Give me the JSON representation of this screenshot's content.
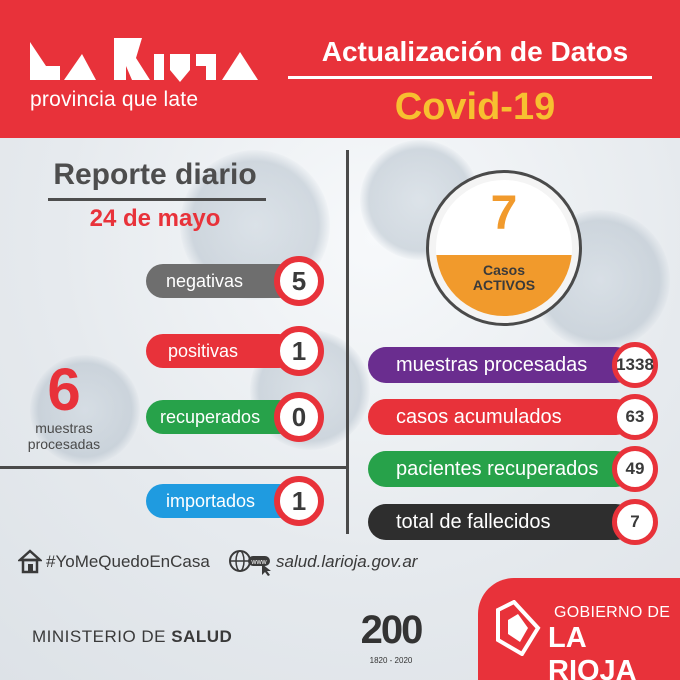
{
  "header": {
    "logo_text": "La Rioja",
    "tagline": "provincia que late",
    "title": "Actualización de Datos",
    "subtitle": "Covid-19"
  },
  "report": {
    "title": "Reporte diario",
    "date": "24 de mayo",
    "items": [
      {
        "label": "negativas",
        "value": "5",
        "color": "#6e6e6e"
      },
      {
        "label": "positivas",
        "value": "1",
        "color": "#e8323a"
      },
      {
        "label": "recuperados",
        "value": "0",
        "color": "#27a24a"
      },
      {
        "label": "importados",
        "value": "1",
        "color": "#1f9be0"
      }
    ],
    "processed_value": "6",
    "processed_label_line1": "muestras",
    "processed_label_line2": "procesadas"
  },
  "active": {
    "value": "7",
    "label_line1": "Casos",
    "label_line2": "ACTIVOS",
    "fill_fraction": 0.45,
    "color": "#f19a2c"
  },
  "totals": [
    {
      "label": "muestras procesadas",
      "value": "1338",
      "color": "#6a2d8f"
    },
    {
      "label": "casos acumulados",
      "value": "63",
      "color": "#e8323a"
    },
    {
      "label": "pacientes recuperados",
      "value": "49",
      "color": "#27a24a"
    },
    {
      "label": "total de fallecidos",
      "value": "7",
      "color": "#2e2e2e"
    }
  ],
  "footer": {
    "hashtag": "#YoMeQuedoEnCasa",
    "url": "salud.larioja.gov.ar",
    "ministry_prefix": "MINISTERIO DE",
    "ministry_bold": "SALUD",
    "anniversary": "200",
    "anniversary_years": "1820 - 2020",
    "gov_line1": "GOBIERNO DE",
    "gov_line2": "LA RIOJA"
  },
  "colors": {
    "brand_red": "#e8323a",
    "accent_yellow": "#f7c030"
  },
  "icons": [
    "house-icon",
    "globe-www-icon",
    "cursor-icon",
    "rioja-emblem-icon"
  ]
}
